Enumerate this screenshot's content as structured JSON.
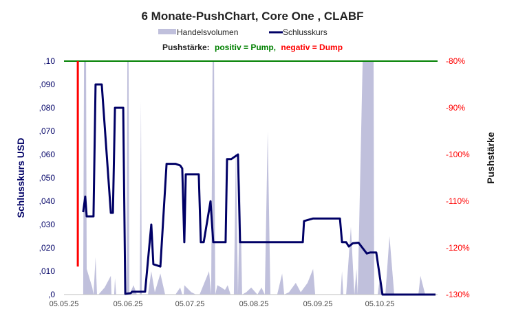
{
  "chart_data": {
    "type": "line",
    "title": "6 Monate-PushChart,  Core One , CLABF",
    "legend": {
      "volume_label": "Handelsvolumen",
      "price_label": "Schlusskurs",
      "push_prefix": "Pushstärke:",
      "push_positive": "positiv = Pump,",
      "push_negative": "negativ = Dump",
      "placement": "top-center"
    },
    "ylabel": "Schlusskurs USD",
    "y2label": "Pushstärke",
    "ylim": [
      0,
      0.1
    ],
    "y2lim": [
      -130,
      -80
    ],
    "x_ticks": [
      {
        "label": "05.05.25",
        "day": 0
      },
      {
        "label": "05.06.25",
        "day": 31
      },
      {
        "label": "05.07.25",
        "day": 61
      },
      {
        "label": "05.08.25",
        "day": 92
      },
      {
        "label": "05.09.25",
        "day": 123
      },
      {
        "label": "05.10.25",
        "day": 153
      }
    ],
    "y_ticks": [
      ",0",
      ",010",
      ",020",
      ",030",
      ",040",
      ",050",
      ",060",
      ",070",
      ",080",
      ",090",
      ",10"
    ],
    "y2_ticks": [
      "-130%",
      "-120%",
      "-110%",
      "-100%",
      "-90%",
      "-80%"
    ],
    "xlim_days": [
      0,
      181
    ],
    "colors": {
      "volume": "#c0c0dc",
      "price": "#000066",
      "threshold": "#008000",
      "push": "#ff0000",
      "left_axis": "#000066",
      "right_axis": "#ff0000"
    },
    "threshold_pct": -80,
    "push_bar": {
      "day": 6.7,
      "value_pct": -124
    },
    "price_series": {
      "name": "Schlusskurs",
      "points": [
        [
          9.3,
          0.0353
        ],
        [
          10.3,
          0.042
        ],
        [
          11,
          0.0335
        ],
        [
          14.3,
          0.0335
        ],
        [
          15.3,
          0.09
        ],
        [
          18.3,
          0.09
        ],
        [
          22.7,
          0.035
        ],
        [
          23.7,
          0.035
        ],
        [
          24.7,
          0.08
        ],
        [
          28.7,
          0.08
        ],
        [
          29.7,
          0.0003
        ],
        [
          32.3,
          0.0006
        ],
        [
          33,
          0.0012
        ],
        [
          39.3,
          0.0012
        ],
        [
          42.3,
          0.03
        ],
        [
          43.3,
          0.013
        ],
        [
          46.7,
          0.012
        ],
        [
          49.7,
          0.056
        ],
        [
          54,
          0.056
        ],
        [
          56.3,
          0.0553
        ],
        [
          57.3,
          0.054
        ],
        [
          58.3,
          0.0224
        ],
        [
          59,
          0.0515
        ],
        [
          65.3,
          0.0515
        ],
        [
          66.3,
          0.0224
        ],
        [
          67.7,
          0.0224
        ],
        [
          71,
          0.04
        ],
        [
          72.3,
          0.0224
        ],
        [
          78.3,
          0.0224
        ],
        [
          79,
          0.058
        ],
        [
          81,
          0.058
        ],
        [
          84.3,
          0.06
        ],
        [
          85.3,
          0.0224
        ],
        [
          115.7,
          0.0224
        ],
        [
          116.3,
          0.0315
        ],
        [
          120.7,
          0.0326
        ],
        [
          133.7,
          0.0326
        ],
        [
          134.7,
          0.0224
        ],
        [
          136.7,
          0.0224
        ],
        [
          138,
          0.0206
        ],
        [
          140,
          0.022
        ],
        [
          142.7,
          0.0222
        ],
        [
          146.7,
          0.0176
        ],
        [
          148.3,
          0.018
        ],
        [
          151.3,
          0.018
        ],
        [
          154.3,
          0.0
        ],
        [
          180,
          0.0
        ]
      ]
    },
    "volume_series": {
      "name": "Handelsvolumen",
      "unit": "percent of axis",
      "points": [
        [
          9.3,
          0
        ],
        [
          9.7,
          100
        ],
        [
          10.7,
          100
        ],
        [
          11,
          11
        ],
        [
          13.7,
          3
        ],
        [
          14.3,
          0
        ],
        [
          15.3,
          16
        ],
        [
          16,
          0
        ],
        [
          16.7,
          0
        ],
        [
          19.7,
          3
        ],
        [
          22.7,
          8
        ],
        [
          23,
          0
        ],
        [
          24.3,
          0
        ],
        [
          24.7,
          7
        ],
        [
          25.3,
          0
        ],
        [
          29.3,
          0
        ],
        [
          30.3,
          0
        ],
        [
          30.7,
          100
        ],
        [
          31.3,
          100
        ],
        [
          31.7,
          0
        ],
        [
          33.7,
          4
        ],
        [
          35.3,
          0
        ],
        [
          36.7,
          0
        ],
        [
          37.3,
          83
        ],
        [
          37.7,
          0
        ],
        [
          40.7,
          0
        ],
        [
          42.3,
          10
        ],
        [
          44,
          1
        ],
        [
          46.7,
          9
        ],
        [
          49,
          0
        ],
        [
          54,
          0
        ],
        [
          56.3,
          3
        ],
        [
          57.3,
          0
        ],
        [
          58,
          0
        ],
        [
          58.3,
          4
        ],
        [
          61.7,
          1
        ],
        [
          64,
          0
        ],
        [
          65.7,
          0
        ],
        [
          70.3,
          10
        ],
        [
          71.3,
          0
        ],
        [
          72,
          100
        ],
        [
          72.7,
          100
        ],
        [
          73.3,
          0
        ],
        [
          74.3,
          4
        ],
        [
          76.3,
          3
        ],
        [
          78,
          2
        ],
        [
          79.3,
          4
        ],
        [
          80.7,
          0
        ],
        [
          82.3,
          0
        ],
        [
          83.3,
          62
        ],
        [
          84.3,
          0
        ],
        [
          85.3,
          50
        ],
        [
          86.3,
          0
        ],
        [
          88.3,
          1
        ],
        [
          90.7,
          3
        ],
        [
          93.7,
          0
        ],
        [
          95.7,
          3
        ],
        [
          97.3,
          0
        ],
        [
          98.7,
          70
        ],
        [
          100,
          0
        ],
        [
          103.3,
          0
        ],
        [
          105.7,
          9
        ],
        [
          106.7,
          0
        ],
        [
          109,
          1
        ],
        [
          112.3,
          5
        ],
        [
          114.7,
          1
        ],
        [
          118,
          5
        ],
        [
          120.7,
          11
        ],
        [
          121.7,
          0
        ],
        [
          134,
          0
        ],
        [
          134.7,
          10
        ],
        [
          135.3,
          0
        ],
        [
          136.7,
          0
        ],
        [
          139,
          29
        ],
        [
          140.7,
          0
        ],
        [
          141.7,
          11
        ],
        [
          142.3,
          0
        ],
        [
          144.7,
          100
        ],
        [
          150,
          100
        ],
        [
          150.3,
          0
        ],
        [
          152,
          0
        ],
        [
          153.3,
          9
        ],
        [
          154,
          0
        ],
        [
          155.7,
          0
        ],
        [
          157.7,
          25
        ],
        [
          160,
          0
        ],
        [
          171.7,
          0
        ],
        [
          172.7,
          8
        ],
        [
          175,
          0
        ],
        [
          180,
          0
        ]
      ]
    }
  }
}
